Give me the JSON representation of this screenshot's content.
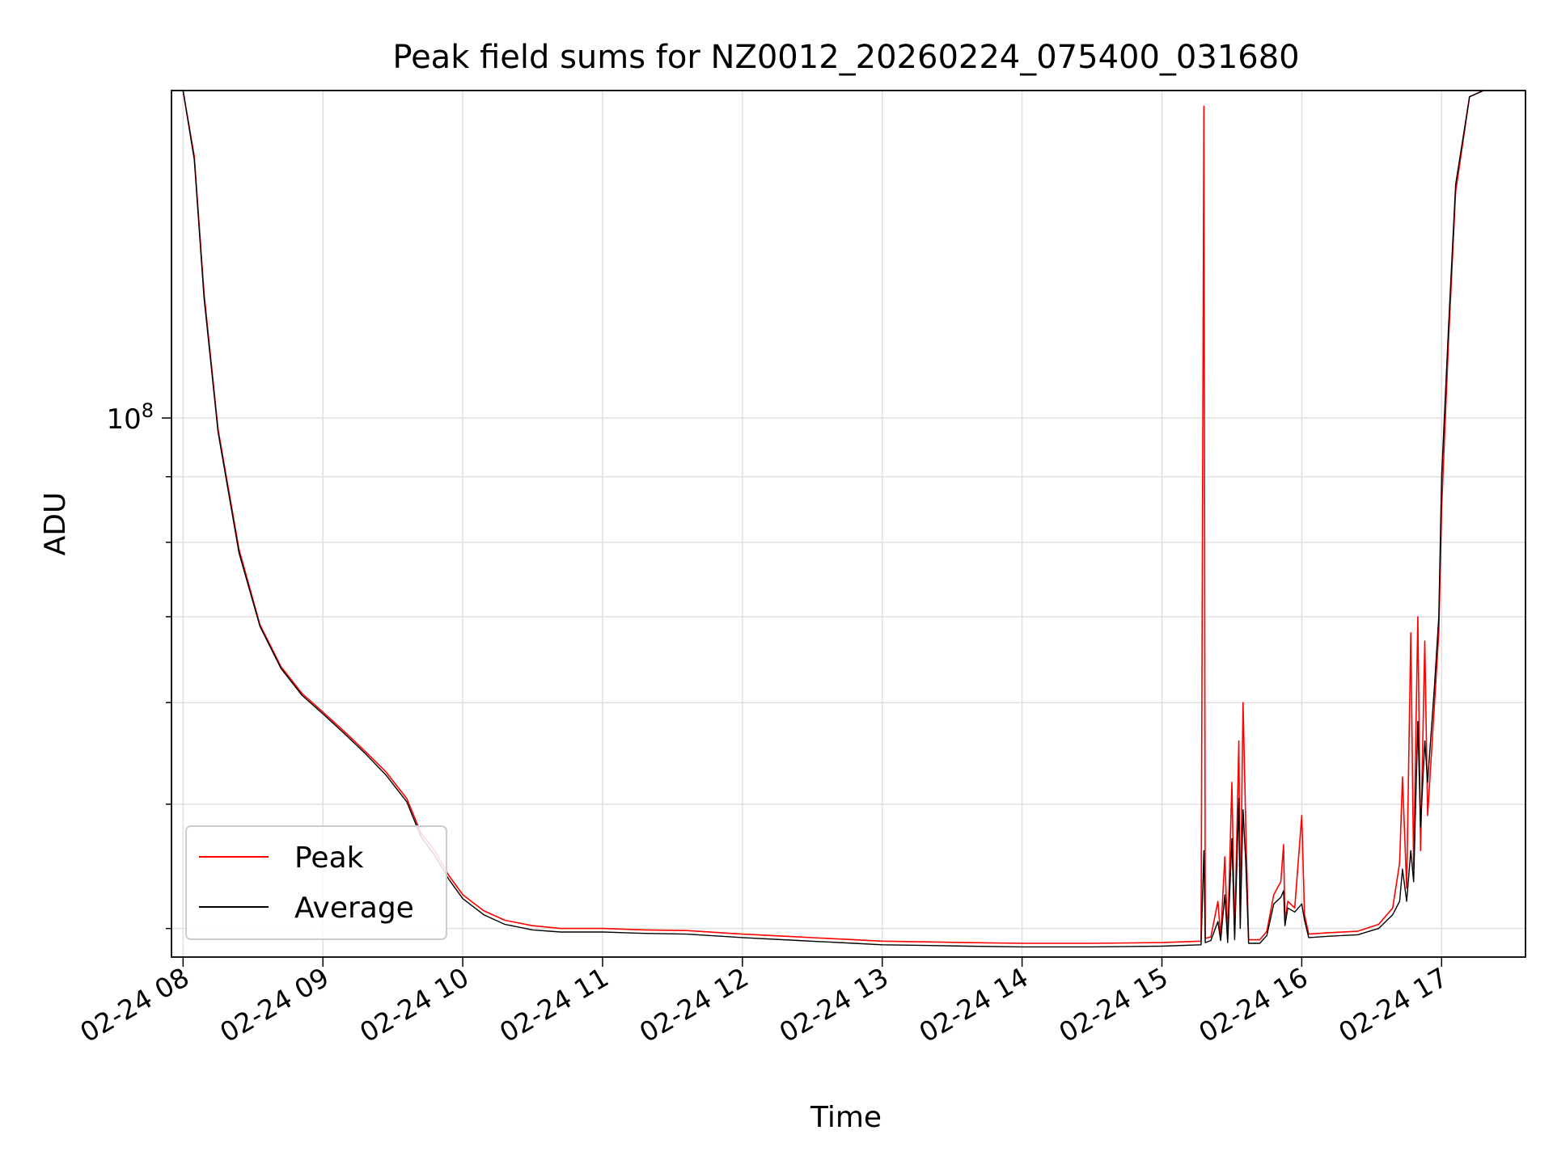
{
  "chart_data": {
    "type": "line",
    "title": "Peak field sums for NZ0012_20260224_075400_031680",
    "xlabel": "Time",
    "ylabel": "ADU",
    "x_unit": "hour of 2026-02-24",
    "x_ticks": [
      {
        "value": 8,
        "label": "02-24 08"
      },
      {
        "value": 9,
        "label": "02-24 09"
      },
      {
        "value": 10,
        "label": "02-24 10"
      },
      {
        "value": 11,
        "label": "02-24 11"
      },
      {
        "value": 12,
        "label": "02-24 12"
      },
      {
        "value": 13,
        "label": "02-24 13"
      },
      {
        "value": 14,
        "label": "02-24 14"
      },
      {
        "value": 15,
        "label": "02-24 15"
      },
      {
        "value": 16,
        "label": "02-24 16"
      },
      {
        "value": 17,
        "label": "02-24 17"
      }
    ],
    "y_ticks": [
      {
        "value": 100000000,
        "base": "10",
        "exp": "8"
      }
    ],
    "y_scale": "log",
    "xlim": [
      7.917,
      17.6
    ],
    "ylim": [
      38000000,
      180000000
    ],
    "grid": true,
    "legend_position": "lower-left",
    "series": [
      {
        "name": "Peak",
        "color": "#ff0000",
        "points": [
          [
            7.917,
            180000000
          ],
          [
            8.0,
            180000000
          ],
          [
            8.08,
            160000000
          ],
          [
            8.15,
            125000000
          ],
          [
            8.25,
            98000000
          ],
          [
            8.4,
            79000000
          ],
          [
            8.55,
            69000000
          ],
          [
            8.7,
            64000000
          ],
          [
            8.85,
            61000000
          ],
          [
            9.0,
            59000000
          ],
          [
            9.15,
            57000000
          ],
          [
            9.3,
            55000000
          ],
          [
            9.45,
            53000000
          ],
          [
            9.6,
            50500000
          ],
          [
            9.7,
            47500000
          ],
          [
            9.8,
            46000000
          ],
          [
            9.9,
            44000000
          ],
          [
            10.0,
            42500000
          ],
          [
            10.15,
            41300000
          ],
          [
            10.3,
            40600000
          ],
          [
            10.5,
            40200000
          ],
          [
            10.7,
            40000000
          ],
          [
            11.0,
            40000000
          ],
          [
            11.3,
            39900000
          ],
          [
            11.6,
            39850000
          ],
          [
            12.0,
            39600000
          ],
          [
            12.4,
            39400000
          ],
          [
            12.8,
            39200000
          ],
          [
            13.0,
            39100000
          ],
          [
            13.3,
            39050000
          ],
          [
            13.6,
            39000000
          ],
          [
            14.0,
            38950000
          ],
          [
            14.5,
            38950000
          ],
          [
            15.0,
            39000000
          ],
          [
            15.28,
            39100000
          ],
          [
            15.3,
            175000000
          ],
          [
            15.31,
            39300000
          ],
          [
            15.35,
            39400000
          ],
          [
            15.4,
            42000000
          ],
          [
            15.42,
            39400000
          ],
          [
            15.45,
            45500000
          ],
          [
            15.47,
            39300000
          ],
          [
            15.5,
            52000000
          ],
          [
            15.52,
            39500000
          ],
          [
            15.55,
            56000000
          ],
          [
            15.56,
            40500000
          ],
          [
            15.58,
            60000000
          ],
          [
            15.6,
            48000000
          ],
          [
            15.62,
            39200000
          ],
          [
            15.7,
            39200000
          ],
          [
            15.75,
            39800000
          ],
          [
            15.8,
            42500000
          ],
          [
            15.85,
            43500000
          ],
          [
            15.87,
            46500000
          ],
          [
            15.88,
            40500000
          ],
          [
            15.9,
            42000000
          ],
          [
            15.95,
            41500000
          ],
          [
            16.0,
            49000000
          ],
          [
            16.02,
            41000000
          ],
          [
            16.05,
            39600000
          ],
          [
            16.2,
            39700000
          ],
          [
            16.4,
            39800000
          ],
          [
            16.55,
            40300000
          ],
          [
            16.65,
            41500000
          ],
          [
            16.7,
            45000000
          ],
          [
            16.72,
            52500000
          ],
          [
            16.75,
            43000000
          ],
          [
            16.78,
            68000000
          ],
          [
            16.8,
            44500000
          ],
          [
            16.83,
            70000000
          ],
          [
            16.85,
            46000000
          ],
          [
            16.88,
            67000000
          ],
          [
            16.9,
            49000000
          ],
          [
            16.95,
            60000000
          ],
          [
            16.98,
            68000000
          ],
          [
            17.0,
            85000000
          ],
          [
            17.05,
            115000000
          ],
          [
            17.1,
            150000000
          ],
          [
            17.2,
            178000000
          ],
          [
            17.3,
            180000000
          ],
          [
            17.6,
            180000000
          ]
        ]
      },
      {
        "name": "Average",
        "color": "#000000",
        "points": [
          [
            7.917,
            180000000
          ],
          [
            8.0,
            180000000
          ],
          [
            8.08,
            159000000
          ],
          [
            8.15,
            124000000
          ],
          [
            8.25,
            97500000
          ],
          [
            8.4,
            78500000
          ],
          [
            8.55,
            68800000
          ],
          [
            8.7,
            63800000
          ],
          [
            8.85,
            60800000
          ],
          [
            9.0,
            58800000
          ],
          [
            9.15,
            56800000
          ],
          [
            9.3,
            54800000
          ],
          [
            9.45,
            52700000
          ],
          [
            9.6,
            50200000
          ],
          [
            9.7,
            47200000
          ],
          [
            9.8,
            45600000
          ],
          [
            9.9,
            43700000
          ],
          [
            10.0,
            42200000
          ],
          [
            10.15,
            41000000
          ],
          [
            10.3,
            40300000
          ],
          [
            10.5,
            39900000
          ],
          [
            10.7,
            39750000
          ],
          [
            11.0,
            39750000
          ],
          [
            11.3,
            39650000
          ],
          [
            11.6,
            39600000
          ],
          [
            12.0,
            39350000
          ],
          [
            12.4,
            39150000
          ],
          [
            12.8,
            38950000
          ],
          [
            13.0,
            38850000
          ],
          [
            13.3,
            38800000
          ],
          [
            13.6,
            38750000
          ],
          [
            14.0,
            38700000
          ],
          [
            14.5,
            38700000
          ],
          [
            15.0,
            38750000
          ],
          [
            15.28,
            38850000
          ],
          [
            15.3,
            46000000
          ],
          [
            15.31,
            39000000
          ],
          [
            15.35,
            39150000
          ],
          [
            15.4,
            40500000
          ],
          [
            15.42,
            39150000
          ],
          [
            15.45,
            42500000
          ],
          [
            15.47,
            39000000
          ],
          [
            15.5,
            47000000
          ],
          [
            15.52,
            39200000
          ],
          [
            15.55,
            50500000
          ],
          [
            15.56,
            40000000
          ],
          [
            15.58,
            49500000
          ],
          [
            15.6,
            45000000
          ],
          [
            15.62,
            38950000
          ],
          [
            15.7,
            38950000
          ],
          [
            15.75,
            39500000
          ],
          [
            15.8,
            41800000
          ],
          [
            15.85,
            42300000
          ],
          [
            15.87,
            42800000
          ],
          [
            15.88,
            40200000
          ],
          [
            15.9,
            41500000
          ],
          [
            15.95,
            41200000
          ],
          [
            16.0,
            41800000
          ],
          [
            16.02,
            40600000
          ],
          [
            16.05,
            39350000
          ],
          [
            16.2,
            39450000
          ],
          [
            16.4,
            39550000
          ],
          [
            16.55,
            40000000
          ],
          [
            16.65,
            41000000
          ],
          [
            16.7,
            42000000
          ],
          [
            16.72,
            44500000
          ],
          [
            16.75,
            42000000
          ],
          [
            16.78,
            46000000
          ],
          [
            16.8,
            43500000
          ],
          [
            16.83,
            58000000
          ],
          [
            16.85,
            48000000
          ],
          [
            16.88,
            56000000
          ],
          [
            16.9,
            52000000
          ],
          [
            16.95,
            62000000
          ],
          [
            16.98,
            70000000
          ],
          [
            17.0,
            90000000
          ],
          [
            17.05,
            118000000
          ],
          [
            17.1,
            152000000
          ],
          [
            17.2,
            178000000
          ],
          [
            17.3,
            180000000
          ],
          [
            17.6,
            180000000
          ]
        ]
      }
    ]
  }
}
